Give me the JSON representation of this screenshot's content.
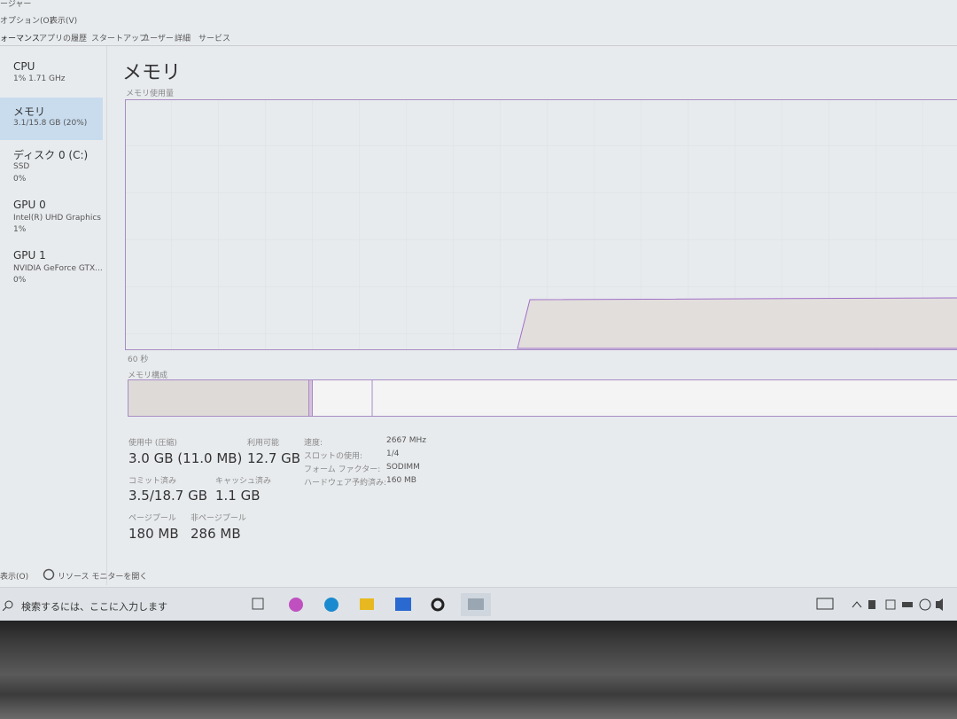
{
  "window": {
    "title": "ージャー",
    "menu": [
      "オプション(O)",
      "表示(V)"
    ],
    "tabs": [
      "ォーマンス",
      "アプリの履歴",
      "スタートアップ",
      "ユーザー",
      "詳細",
      "サービス"
    ]
  },
  "sidebar": [
    {
      "name": "CPU",
      "lines": [
        "1% 1.71 GHz"
      ]
    },
    {
      "name": "メモリ",
      "lines": [
        "3.1/15.8 GB (20%)"
      ]
    },
    {
      "name": "ディスク 0 (C:)",
      "lines": [
        "SSD",
        "0%"
      ]
    },
    {
      "name": "GPU 0",
      "lines": [
        "Intel(R) UHD Graphics",
        "1%"
      ]
    },
    {
      "name": "GPU 1",
      "lines": [
        "NVIDIA GeForce GTX...",
        "0%"
      ]
    }
  ],
  "main": {
    "heading": "メモリ",
    "graph_label": "メモリ使用量",
    "time_label": "60 秒",
    "composition_label": "メモリ構成",
    "stats": [
      {
        "label": "使用中 (圧縮)",
        "value": "3.0 GB (11.0 MB)"
      },
      {
        "label": "利用可能",
        "value": "12.7 GB"
      },
      {
        "label": "コミット済み",
        "value": "3.5/18.7 GB"
      },
      {
        "label": "キャッシュ済み",
        "value": "1.1 GB"
      },
      {
        "label": "ページプール",
        "value": "180 MB"
      },
      {
        "label": "非ページプール",
        "value": "286 MB"
      }
    ],
    "details": [
      {
        "label": "速度:",
        "value": "2667 MHz"
      },
      {
        "label": "スロットの使用:",
        "value": "1/4"
      },
      {
        "label": "フォーム ファクター:",
        "value": "SODIMM"
      },
      {
        "label": "ハードウェア予約済み:",
        "value": "160 MB"
      }
    ]
  },
  "footer": {
    "fewer": "表示(O)",
    "resource_monitor": "リソース モニターを開く"
  },
  "taskbar": {
    "search": "検索するには、ここに入力します"
  }
}
